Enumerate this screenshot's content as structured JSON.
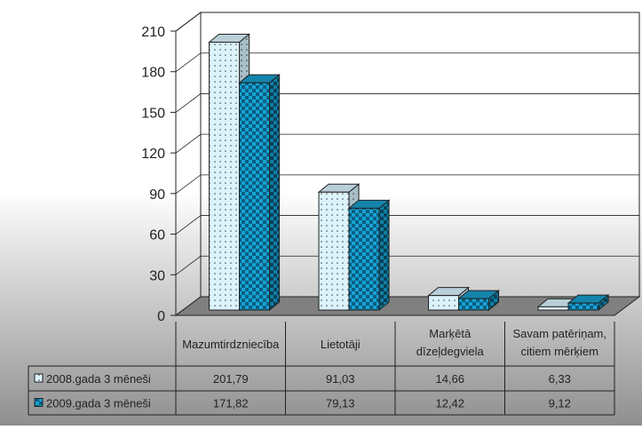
{
  "chart_data": {
    "type": "bar",
    "categories": [
      [
        "Mazumtirdzniecība"
      ],
      [
        "Lietotāji"
      ],
      [
        "Marķētā",
        "dīzeļdegviela"
      ],
      [
        "Savam patēriņam,",
        "citiem mērķiem"
      ]
    ],
    "series": [
      {
        "name": "2008.gada 3 mēneši",
        "values": [
          201.79,
          91.03,
          14.66,
          6.33
        ],
        "value_labels": [
          "201,79",
          "91,03",
          "14,66",
          "6,33"
        ],
        "color": "#d9f2fb"
      },
      {
        "name": "2009.gada 3 mēneši",
        "values": [
          171.82,
          79.13,
          12.42,
          9.12
        ],
        "value_labels": [
          "171,82",
          "79,13",
          "12,42",
          "9,12"
        ],
        "color": "#1aa7d6"
      }
    ],
    "ylim": [
      0,
      210
    ],
    "yticks": [
      0,
      30,
      60,
      90,
      120,
      150,
      180,
      210
    ],
    "grid": true,
    "data_table": true,
    "style": "3d-clustered-bar"
  }
}
